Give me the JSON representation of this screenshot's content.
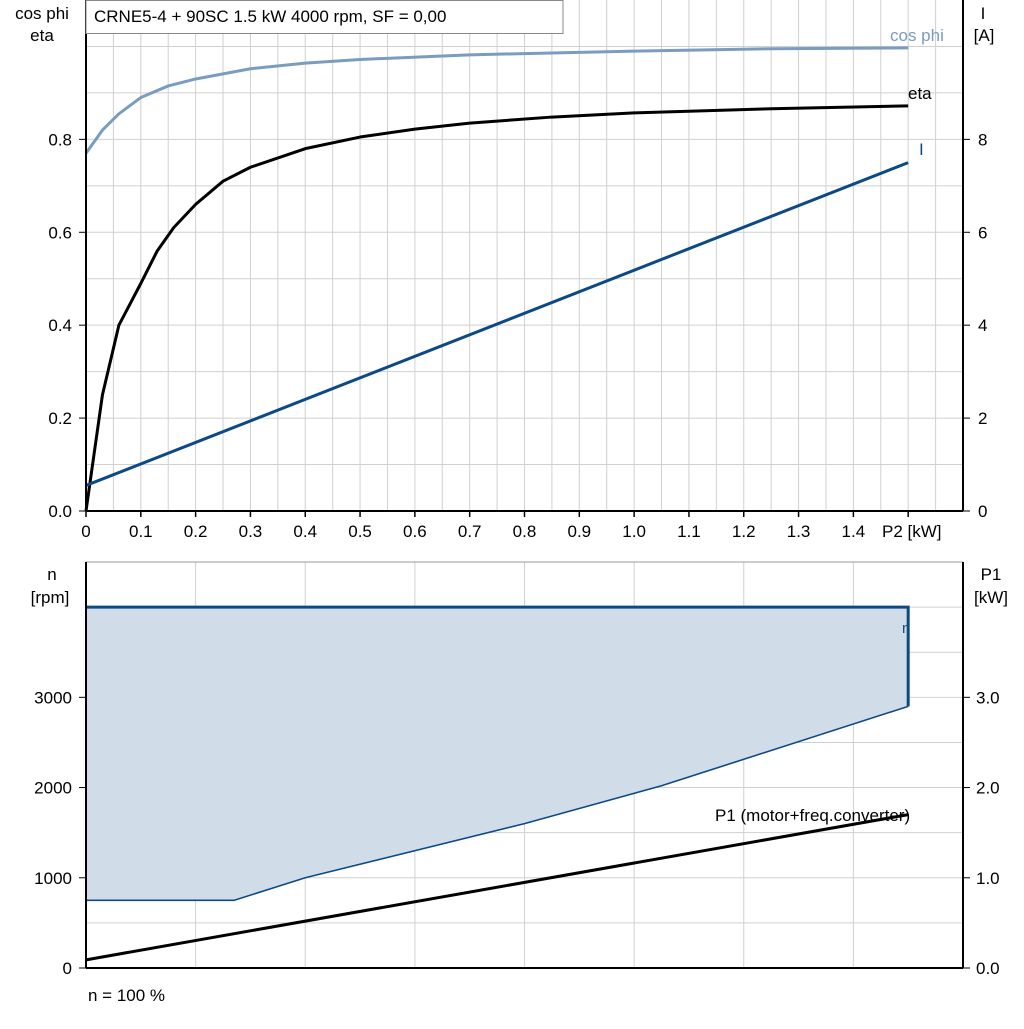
{
  "title": "CRNE5-4 + 90SC   1.5 kW   4000 rpm, SF = 0,00",
  "footer": "n = 100 %",
  "colors": {
    "cosphi": "#7a9cc0",
    "eta": "#000000",
    "current": "#0d4a85",
    "speed": "#0d4a85",
    "speed_fill": "#d0dce8",
    "p1": "#000000",
    "grid": "#d0d0d0"
  },
  "chart_data": [
    {
      "type": "line",
      "xlabel": "P2 [kW]",
      "ylabel_left": [
        "cos phi",
        "eta"
      ],
      "ylabel_right": [
        "I",
        "[A]"
      ],
      "xlim": [
        0,
        1.6
      ],
      "ylim_left": [
        0,
        1.1
      ],
      "ylim_right": [
        0,
        11
      ],
      "x_ticks": [
        "0",
        "0.1",
        "0.2",
        "0.3",
        "0.4",
        "0.5",
        "0.6",
        "0.7",
        "0.8",
        "0.9",
        "1.0",
        "1.1",
        "1.2",
        "1.3",
        "1.4"
      ],
      "y_ticks_left": [
        "0.0",
        "0.2",
        "0.4",
        "0.6",
        "0.8"
      ],
      "y_ticks_right": [
        "0",
        "2",
        "4",
        "6",
        "8"
      ],
      "grid": true,
      "series": [
        {
          "name": "cos phi",
          "axis": "left",
          "x": [
            0,
            0.03,
            0.06,
            0.1,
            0.15,
            0.2,
            0.3,
            0.4,
            0.5,
            0.7,
            1.0,
            1.25,
            1.5
          ],
          "y": [
            0.77,
            0.82,
            0.855,
            0.89,
            0.915,
            0.93,
            0.952,
            0.964,
            0.972,
            0.982,
            0.99,
            0.995,
            0.997
          ]
        },
        {
          "name": "eta",
          "axis": "left",
          "x": [
            0,
            0.03,
            0.06,
            0.1,
            0.13,
            0.16,
            0.2,
            0.25,
            0.3,
            0.4,
            0.5,
            0.6,
            0.7,
            0.85,
            1.0,
            1.25,
            1.5
          ],
          "y": [
            0,
            0.25,
            0.4,
            0.49,
            0.56,
            0.61,
            0.66,
            0.71,
            0.74,
            0.78,
            0.805,
            0.822,
            0.835,
            0.848,
            0.857,
            0.866,
            0.872
          ]
        },
        {
          "name": "I",
          "axis": "right",
          "x": [
            0,
            1.5
          ],
          "y": [
            0.55,
            7.5
          ]
        }
      ]
    },
    {
      "type": "area",
      "ylabel_left": [
        "n",
        "[rpm]"
      ],
      "ylabel_right": [
        "P1",
        "[kW]"
      ],
      "xlim": [
        0,
        1.6
      ],
      "ylim_left": [
        0,
        4500
      ],
      "ylim_right": [
        0,
        4.5
      ],
      "y_ticks_left": [
        "0",
        "1000",
        "2000",
        "3000"
      ],
      "y_ticks_right": [
        "0.0",
        "1.0",
        "2.0",
        "3.0"
      ],
      "grid": true,
      "series": [
        {
          "name": "n",
          "axis": "left",
          "upper": {
            "x": [
              0,
              1.5,
              1.5
            ],
            "y": [
              4000,
              4000,
              2900
            ]
          },
          "lower": {
            "x": [
              0,
              0.27,
              0.4,
              0.8,
              1.05,
              1.5
            ],
            "y": [
              750,
              750,
              1000,
              1600,
              2020,
              2900
            ]
          }
        },
        {
          "name": "P1 (motor+freq.converter)",
          "axis": "right",
          "x": [
            0,
            1.5
          ],
          "y": [
            0.09,
            1.7
          ]
        }
      ]
    }
  ]
}
